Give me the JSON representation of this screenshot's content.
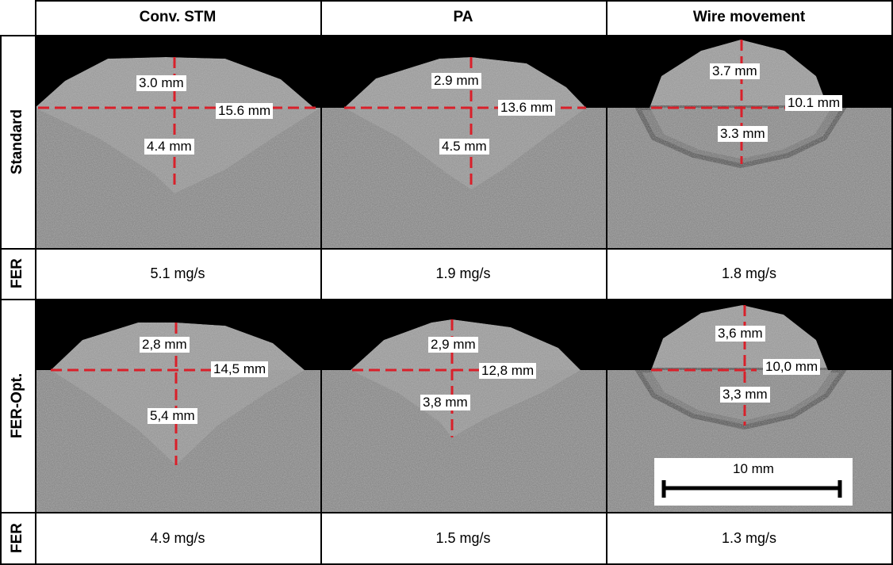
{
  "columns": [
    "Conv. STM",
    "PA",
    "Wire movement"
  ],
  "rows": {
    "standard_label": "Standard",
    "fer_label": "FER",
    "feropt_label": "FER-Opt."
  },
  "standard": [
    {
      "height": "3.0 mm",
      "width": "15.6 mm",
      "depth": "4.4 mm"
    },
    {
      "height": "2.9 mm",
      "width": "13.6 mm",
      "depth": "4.5 mm"
    },
    {
      "height": "3.7 mm",
      "width": "10.1 mm",
      "depth": "3.3 mm"
    }
  ],
  "fer_standard": [
    "5.1 mg/s",
    "1.9 mg/s",
    "1.8 mg/s"
  ],
  "feropt": [
    {
      "height": "2,8 mm",
      "width": "14,5 mm",
      "depth": "5,4 mm"
    },
    {
      "height": "2,9 mm",
      "width": "12,8 mm",
      "depth": "3,8 mm"
    },
    {
      "height": "3,6 mm",
      "width": "10,0 mm",
      "depth": "3,3 mm"
    }
  ],
  "fer_feropt": [
    "4.9 mg/s",
    "1.5 mg/s",
    "1.3 mg/s"
  ],
  "scale_bar": "10 mm",
  "colors": {
    "measure_line": "#d9202a",
    "background": "#000000",
    "metal": "#8a8a8a"
  }
}
